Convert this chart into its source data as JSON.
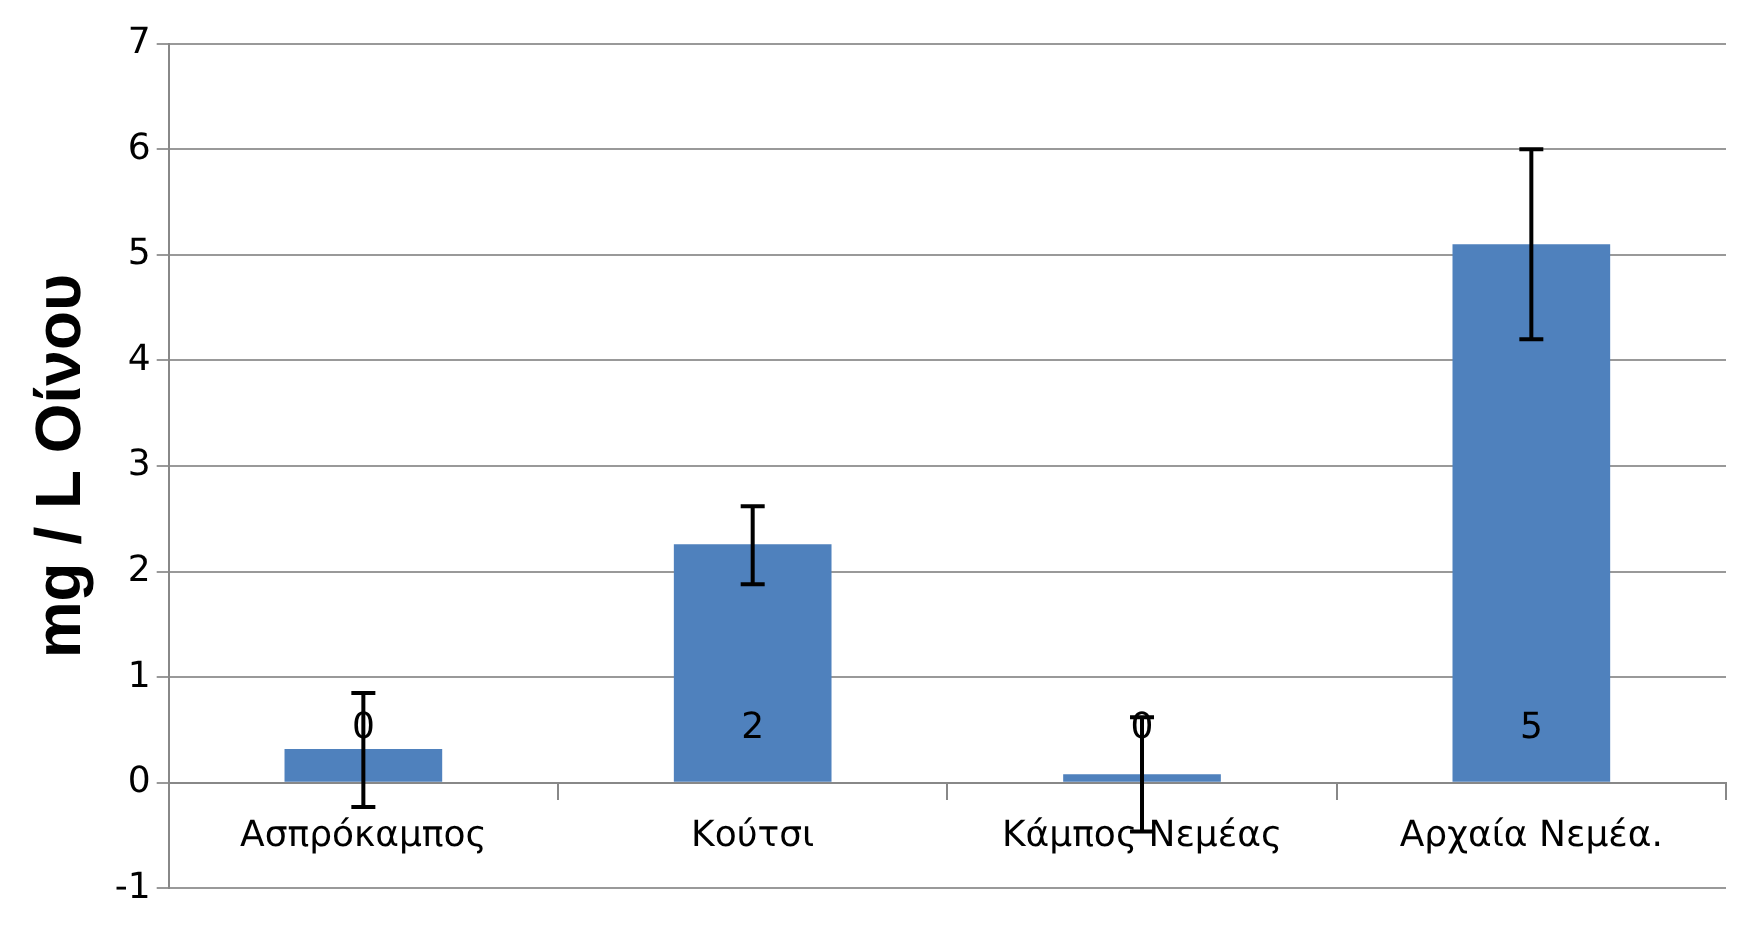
{
  "chart_data": {
    "type": "bar",
    "ylabel": "mg / L Οίνου",
    "categories": [
      "Ασπρόκαμπος",
      "Κούτσι",
      "Κάμπος Νεμέας",
      "Αρχαία Νεμέα."
    ],
    "values": [
      0.32,
      2.26,
      0.08,
      5.1
    ],
    "errors": [
      [
        -0.23,
        0.85
      ],
      [
        1.88,
        2.62
      ],
      [
        -0.46,
        0.62
      ],
      [
        4.2,
        6.0
      ]
    ],
    "value_labels": [
      "0",
      "2",
      "0",
      "5"
    ],
    "color": "#4f81bd",
    "ylim": [
      -1,
      7
    ],
    "yticks": [
      -1,
      0,
      1,
      2,
      3,
      4,
      5,
      6,
      7
    ],
    "grid": "y"
  }
}
